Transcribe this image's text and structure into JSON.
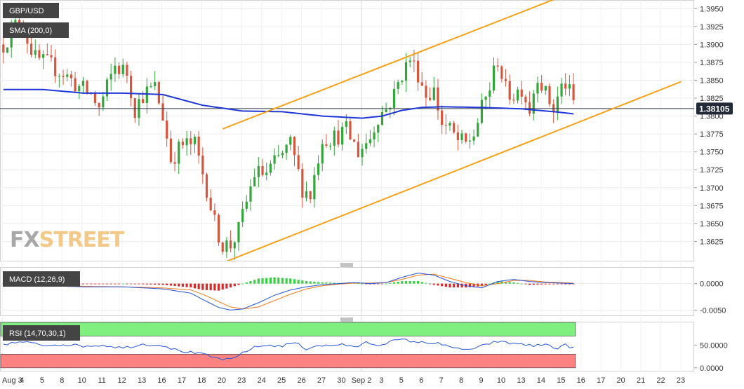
{
  "chart_data": [
    {
      "type": "candlestick",
      "title": "GBP/USD",
      "indicator": "SMA (200,0)",
      "price_label": "1.38105",
      "current_price": 1.38105,
      "ylim": [
        1.3598,
        1.3962
      ],
      "y_ticks": [
        "1.3950",
        "1.3925",
        "1.3900",
        "1.3875",
        "1.3850",
        "1.3825",
        "1.3800",
        "1.3775",
        "1.3750",
        "1.3725",
        "1.3700",
        "1.3675",
        "1.3650",
        "1.3625"
      ],
      "x_ticks": [
        "Aug 3",
        "4",
        "5",
        "8",
        "10",
        "11",
        "12",
        "13",
        "16",
        "17",
        "18",
        "20",
        "23",
        "24",
        "25",
        "26",
        "27",
        "30",
        "Sep 2",
        "3",
        "5",
        "6",
        "7",
        "8",
        "9",
        "10",
        "13",
        "14",
        "15",
        "16",
        "17",
        "20",
        "21",
        "22",
        "23"
      ],
      "ohlc_anchors": [
        [
          0,
          1.39
        ],
        [
          4,
          1.3935
        ],
        [
          8,
          1.388
        ],
        [
          12,
          1.387
        ],
        [
          15,
          1.386
        ],
        [
          19,
          1.384
        ],
        [
          22,
          1.383
        ],
        [
          24,
          1.381
        ],
        [
          28,
          1.387
        ],
        [
          31,
          1.386
        ],
        [
          33,
          1.381
        ],
        [
          35,
          1.383
        ],
        [
          38,
          1.384
        ],
        [
          40,
          1.38
        ],
        [
          42,
          1.374
        ],
        [
          45,
          1.376
        ],
        [
          48,
          1.376
        ],
        [
          51,
          1.37
        ],
        [
          53,
          1.365
        ],
        [
          55,
          1.362
        ],
        [
          57,
          1.362
        ],
        [
          59,
          1.364
        ],
        [
          61,
          1.368
        ],
        [
          63,
          1.372
        ],
        [
          66,
          1.372
        ],
        [
          69,
          1.374
        ],
        [
          72,
          1.376
        ],
        [
          75,
          1.37
        ],
        [
          77,
          1.369
        ],
        [
          80,
          1.377
        ],
        [
          83,
          1.377
        ],
        [
          86,
          1.378
        ],
        [
          89,
          1.375
        ],
        [
          92,
          1.377
        ],
        [
          94,
          1.38
        ],
        [
          96,
          1.381
        ],
        [
          98,
          1.383
        ],
        [
          100,
          1.386
        ],
        [
          102,
          1.388
        ],
        [
          104,
          1.386
        ],
        [
          106,
          1.383
        ],
        [
          108,
          1.3835
        ],
        [
          110,
          1.379
        ],
        [
          112,
          1.378
        ],
        [
          114,
          1.3765
        ],
        [
          116,
          1.376
        ],
        [
          118,
          1.3775
        ],
        [
          120,
          1.381
        ],
        [
          122,
          1.384
        ],
        [
          124,
          1.388
        ],
        [
          126,
          1.3835
        ],
        [
          128,
          1.383
        ],
        [
          130,
          1.384
        ],
        [
          132,
          1.381
        ],
        [
          134,
          1.386
        ],
        [
          136,
          1.383
        ],
        [
          138,
          1.381
        ],
        [
          140,
          1.384
        ],
        [
          141,
          1.3845
        ],
        [
          143,
          1.3818
        ]
      ],
      "sma_anchors": [
        [
          0,
          1.3837
        ],
        [
          10,
          1.3837
        ],
        [
          20,
          1.3832
        ],
        [
          30,
          1.3832
        ],
        [
          40,
          1.383
        ],
        [
          50,
          1.3815
        ],
        [
          60,
          1.3807
        ],
        [
          70,
          1.3806
        ],
        [
          80,
          1.38
        ],
        [
          90,
          1.3797
        ],
        [
          95,
          1.38
        ],
        [
          100,
          1.3808
        ],
        [
          105,
          1.3812
        ],
        [
          110,
          1.3813
        ],
        [
          120,
          1.3812
        ],
        [
          130,
          1.381
        ],
        [
          140,
          1.3805
        ],
        [
          143,
          1.3803
        ]
      ],
      "channel_lines": [
        {
          "from": [
            1.3782,
            55
          ],
          "to": [
            1.3967,
            140
          ]
        },
        {
          "from": [
            1.3595,
            55
          ],
          "to": [
            1.3848,
            170
          ]
        }
      ]
    },
    {
      "type": "histogram",
      "title": "MACD (12,26,9)",
      "ylim": [
        -0.006,
        0.003
      ],
      "y_ticks": [
        "0.0000",
        "-0.0050"
      ],
      "macd_anchors": [
        [
          0,
          0.0002
        ],
        [
          10,
          -0.0004
        ],
        [
          20,
          -0.0006
        ],
        [
          30,
          -0.0006
        ],
        [
          40,
          -0.001
        ],
        [
          47,
          -0.0018
        ],
        [
          50,
          -0.003
        ],
        [
          54,
          -0.0045
        ],
        [
          57,
          -0.005
        ],
        [
          60,
          -0.0048
        ],
        [
          64,
          -0.0036
        ],
        [
          68,
          -0.0022
        ],
        [
          72,
          -0.0012
        ],
        [
          76,
          -0.0006
        ],
        [
          80,
          -0.0002
        ],
        [
          84,
          0.0
        ],
        [
          88,
          0.0002
        ],
        [
          92,
          0.0
        ],
        [
          96,
          0.0002
        ],
        [
          100,
          0.0012
        ],
        [
          104,
          0.002
        ],
        [
          108,
          0.0016
        ],
        [
          112,
          0.0004
        ],
        [
          116,
          -0.0004
        ],
        [
          120,
          -0.0008
        ],
        [
          124,
          0.0004
        ],
        [
          128,
          0.0008
        ],
        [
          132,
          0.0004
        ],
        [
          136,
          0.0002
        ],
        [
          140,
          0.0001
        ],
        [
          143,
          0.0
        ]
      ],
      "signal_anchors": [
        [
          0,
          0.0002
        ],
        [
          10,
          -0.0002
        ],
        [
          20,
          -0.0005
        ],
        [
          30,
          -0.0006
        ],
        [
          40,
          -0.0008
        ],
        [
          47,
          -0.0012
        ],
        [
          50,
          -0.002
        ],
        [
          54,
          -0.0034
        ],
        [
          57,
          -0.0044
        ],
        [
          60,
          -0.0048
        ],
        [
          64,
          -0.0044
        ],
        [
          68,
          -0.0032
        ],
        [
          72,
          -0.002
        ],
        [
          76,
          -0.001
        ],
        [
          80,
          -0.0004
        ],
        [
          84,
          -0.0001
        ],
        [
          88,
          0.0001
        ],
        [
          92,
          0.0001
        ],
        [
          96,
          0.0002
        ],
        [
          100,
          0.0008
        ],
        [
          104,
          0.0016
        ],
        [
          108,
          0.0018
        ],
        [
          112,
          0.001
        ],
        [
          116,
          0.0002
        ],
        [
          120,
          -0.0004
        ],
        [
          124,
          0.0
        ],
        [
          128,
          0.0006
        ],
        [
          132,
          0.0006
        ],
        [
          136,
          0.0003
        ],
        [
          140,
          0.0002
        ],
        [
          143,
          0.0001
        ]
      ]
    },
    {
      "type": "line",
      "title": "RSI (14,70,30,1)",
      "ylim": [
        -8,
        100
      ],
      "overbought": 70,
      "oversold": 30,
      "y_ticks": [
        "50.0000",
        "0.0000"
      ],
      "rsi_anchors": [
        [
          0,
          52
        ],
        [
          5,
          57
        ],
        [
          10,
          50
        ],
        [
          15,
          52
        ],
        [
          20,
          48
        ],
        [
          25,
          50
        ],
        [
          30,
          44
        ],
        [
          35,
          52
        ],
        [
          40,
          50
        ],
        [
          43,
          40
        ],
        [
          46,
          35
        ],
        [
          50,
          30
        ],
        [
          53,
          22
        ],
        [
          56,
          18
        ],
        [
          58,
          20
        ],
        [
          60,
          34
        ],
        [
          63,
          45
        ],
        [
          66,
          50
        ],
        [
          70,
          48
        ],
        [
          73,
          56
        ],
        [
          76,
          42
        ],
        [
          79,
          50
        ],
        [
          82,
          48
        ],
        [
          85,
          53
        ],
        [
          88,
          44
        ],
        [
          91,
          56
        ],
        [
          94,
          50
        ],
        [
          97,
          58
        ],
        [
          100,
          62
        ],
        [
          103,
          58
        ],
        [
          106,
          54
        ],
        [
          109,
          56
        ],
        [
          112,
          44
        ],
        [
          115,
          42
        ],
        [
          118,
          40
        ],
        [
          121,
          52
        ],
        [
          124,
          58
        ],
        [
          127,
          54
        ],
        [
          130,
          53
        ],
        [
          133,
          48
        ],
        [
          136,
          52
        ],
        [
          139,
          43
        ],
        [
          141,
          50
        ],
        [
          143,
          44
        ]
      ]
    }
  ],
  "colors": {
    "bull": "#33a53a",
    "bear": "#d6563d",
    "sma": "#1f37d6",
    "channel": "#f5a21a",
    "macd_line": "#2553d9",
    "signal_line": "#f07a1a",
    "hist_pos": "#35d13f",
    "hist_neg": "#d62a2a",
    "rsi_line": "#2456d8",
    "overbought_fill": "#7ff07f",
    "oversold_fill": "#ff8282",
    "label_bg": "#444444"
  },
  "watermark": {
    "part1": "FX",
    "part2": "STREET"
  }
}
